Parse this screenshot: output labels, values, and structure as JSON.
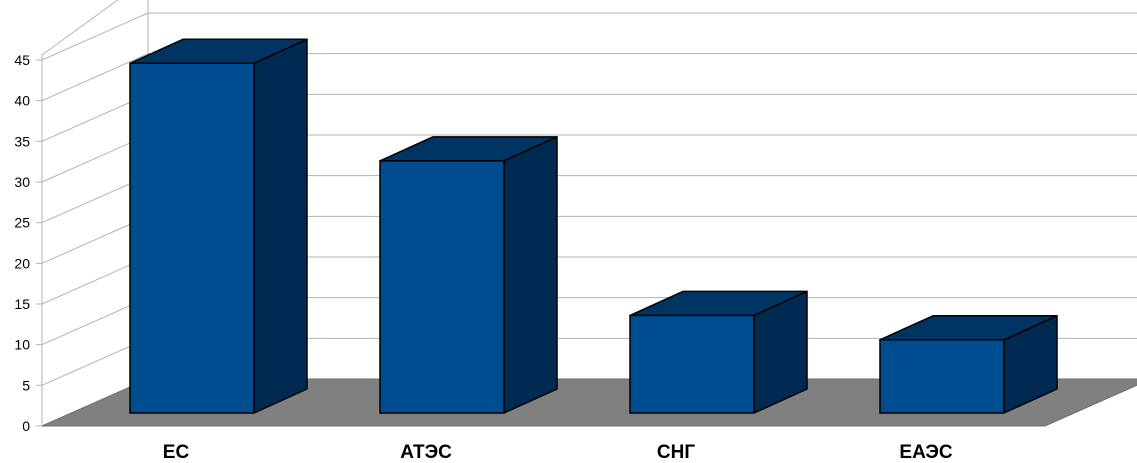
{
  "chart_data": {
    "type": "bar",
    "categories": [
      "ЕС",
      "АТЭС",
      "СНГ",
      "ЕАЭС"
    ],
    "values": [
      43,
      31,
      12,
      9
    ],
    "ylim": [
      0,
      45
    ],
    "yticks": [
      "0",
      "5",
      "10",
      "15",
      "20",
      "25",
      "30",
      "35",
      "40",
      "45"
    ],
    "grid": true,
    "style": "3d",
    "colors": {
      "bar_front": "#004c91",
      "bar_side": "#002a52",
      "bar_top": "#003463",
      "floor": "#808080",
      "grid": "#b3b3b3"
    }
  }
}
